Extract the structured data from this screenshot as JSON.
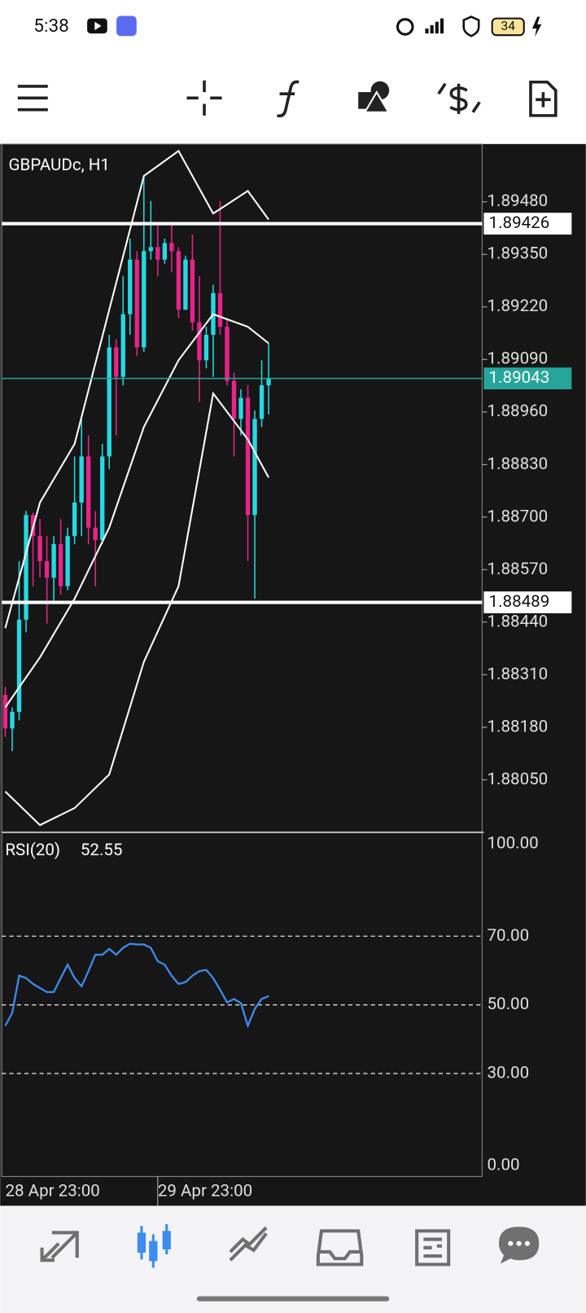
{
  "status_bar": {
    "time": "5:38",
    "battery": "34"
  },
  "chart_data": [
    {
      "type": "candlestick",
      "title": "GBPAUDc, H1",
      "open": [
        1.8826,
        1.88177,
        1.88218,
        1.88446,
        1.88705,
        1.88653,
        1.88591,
        1.8855,
        1.88633,
        1.88529,
        1.88653,
        1.88736,
        1.8885,
        1.88674,
        1.88643,
        1.8885,
        1.8912,
        1.89047,
        1.89202,
        1.89337,
        1.8912,
        1.89358,
        1.89368,
        1.89337,
        1.89378,
        1.89358,
        1.89213,
        1.89337,
        1.89182,
        1.89088,
        1.89151,
        1.89254,
        1.89171,
        1.89037,
        1.88943,
        1.88995,
        1.88705,
        1.88943,
        1.89026
      ],
      "high": [
        1.8828,
        1.88229,
        1.88591,
        1.88715,
        1.88711,
        1.88695,
        1.88653,
        1.88653,
        1.88695,
        1.88674,
        1.8885,
        1.88943,
        1.88902,
        1.88715,
        1.88881,
        1.89151,
        1.8914,
        1.89296,
        1.89389,
        1.89358,
        1.89544,
        1.89482,
        1.8943,
        1.89389,
        1.8943,
        1.89368,
        1.89347,
        1.89399,
        1.89296,
        1.89171,
        1.89275,
        1.89482,
        1.89192,
        1.89057,
        1.89016,
        1.89026,
        1.88964,
        1.89088,
        1.8913
      ],
      "low": [
        1.88156,
        1.88121,
        1.88197,
        1.88415,
        1.88529,
        1.8855,
        1.88436,
        1.88488,
        1.88508,
        1.88519,
        1.88633,
        1.88653,
        1.88633,
        1.88529,
        1.88633,
        1.88819,
        1.88902,
        1.89026,
        1.89151,
        1.89099,
        1.89109,
        1.89337,
        1.89296,
        1.89327,
        1.89306,
        1.89192,
        1.89213,
        1.89161,
        1.88985,
        1.89068,
        1.89047,
        1.89151,
        1.89026,
        1.8885,
        1.88902,
        1.88591,
        1.88498,
        1.88923,
        1.88954
      ],
      "close": [
        1.88177,
        1.88218,
        1.88446,
        1.88705,
        1.88653,
        1.88591,
        1.8855,
        1.88633,
        1.88529,
        1.88653,
        1.88736,
        1.8885,
        1.88674,
        1.88643,
        1.8885,
        1.8912,
        1.89047,
        1.89202,
        1.89337,
        1.8912,
        1.89358,
        1.89368,
        1.89337,
        1.89378,
        1.89358,
        1.89213,
        1.89337,
        1.89182,
        1.89088,
        1.89151,
        1.89254,
        1.89171,
        1.89037,
        1.88943,
        1.88995,
        1.88705,
        1.88943,
        1.89026,
        1.89043
      ],
      "up_color": "#26d9e3",
      "down_color": "#e8238a",
      "overlays": [
        {
          "color": "#ffffff",
          "x": [
            0,
            5,
            10,
            15,
            20,
            25,
            30,
            35,
            38
          ],
          "values": [
            1.88425,
            1.88736,
            1.88881,
            1.89213,
            1.89544,
            1.89606,
            1.89451,
            1.89507,
            1.89436
          ]
        },
        {
          "color": "#ffffff",
          "x": [
            0,
            5,
            10,
            15,
            20,
            25,
            30,
            35,
            38
          ],
          "values": [
            1.88229,
            1.88353,
            1.88498,
            1.88674,
            1.88923,
            1.89088,
            1.89202,
            1.89171,
            1.8913
          ]
        },
        {
          "color": "#ffffff",
          "x": [
            0,
            5,
            10,
            15,
            20,
            25,
            30,
            35,
            38
          ],
          "values": [
            1.88021,
            1.87938,
            1.8798,
            1.88063,
            1.88342,
            1.88529,
            1.89006,
            1.88892,
            1.88798
          ]
        }
      ],
      "hlines": [
        1.89426,
        1.88489
      ],
      "hline_color": "#ffffff",
      "last_price": 1.89043,
      "last_color": "#26a69a",
      "xlim": [
        -0.5,
        68.8
      ],
      "ylim": [
        1.87922,
        1.89623
      ],
      "xticks": [
        {
          "value": 0,
          "label": "28 Apr 23:00"
        },
        {
          "value": 22,
          "label": "29 Apr 23:00"
        }
      ],
      "yticks": [
        {
          "value": 1.8948,
          "label": "1.89480"
        },
        {
          "value": 1.8935,
          "label": "1.89350"
        },
        {
          "value": 1.8922,
          "label": "1.89220"
        },
        {
          "value": 1.8909,
          "label": "1.89090"
        },
        {
          "value": 1.8896,
          "label": "1.88960"
        },
        {
          "value": 1.8883,
          "label": "1.88830"
        },
        {
          "value": 1.887,
          "label": "1.88700"
        },
        {
          "value": 1.8857,
          "label": "1.88570"
        },
        {
          "value": 1.8844,
          "label": "1.88440"
        },
        {
          "value": 1.8831,
          "label": "1.88310"
        },
        {
          "value": 1.8818,
          "label": "1.88180"
        },
        {
          "value": 1.8805,
          "label": "1.88050"
        }
      ]
    },
    {
      "type": "line",
      "title": "RSI(20)",
      "series": [
        {
          "color": "#3d8cf0",
          "values": [
            43.9,
            47.6,
            58.5,
            57.8,
            56.1,
            54.9,
            53.7,
            53.7,
            57.8,
            61.7,
            57.8,
            55.4,
            59.8,
            64.6,
            64.6,
            66.3,
            64.6,
            66.6,
            67.8,
            67.6,
            67.6,
            66.6,
            62.7,
            61.7,
            58.5,
            56.1,
            56.6,
            58.5,
            59.8,
            60.2,
            57.8,
            54.4,
            50.7,
            51.7,
            50.5,
            43.9,
            48.8,
            51.7,
            52.55
          ]
        }
      ],
      "ylim": [
        0,
        100
      ],
      "yticks": [
        {
          "value": 100,
          "label": "100.00"
        },
        {
          "value": 70,
          "label": "70.00"
        },
        {
          "value": 50,
          "label": "50.00"
        },
        {
          "value": 30,
          "label": "30.00"
        },
        {
          "value": 0,
          "label": "0.00"
        }
      ]
    }
  ]
}
